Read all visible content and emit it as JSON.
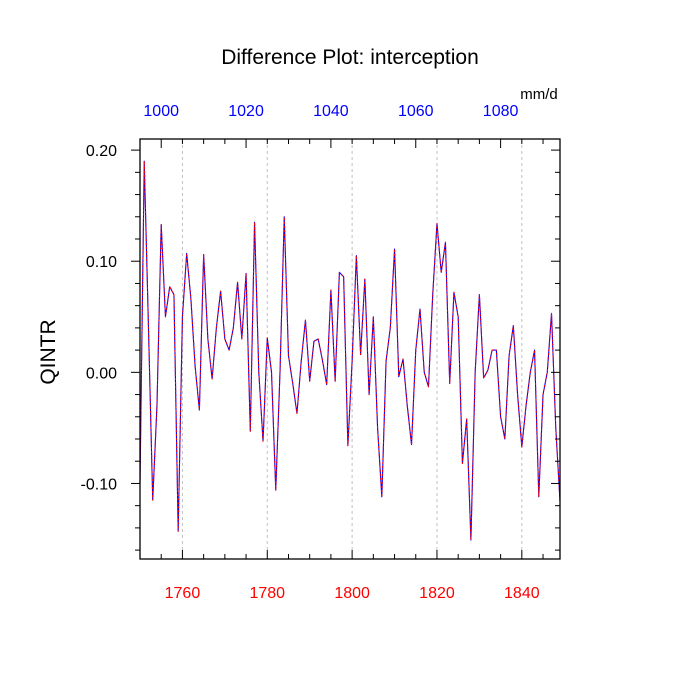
{
  "chart_data": {
    "type": "line",
    "title": "Difference Plot: interception",
    "ylabel": "QINTR",
    "units": "mm/d",
    "xlim": [
      1750,
      1849
    ],
    "ylim": [
      -0.168,
      0.21
    ],
    "top_xlim": [
      995,
      1094
    ],
    "grid": "vertical dashed lines at major x ticks",
    "x_ticks": [
      1760,
      1780,
      1800,
      1820,
      1840
    ],
    "x_tick_labels": [
      "1760",
      "1780",
      "1800",
      "1820",
      "1840"
    ],
    "top_ticks": [
      1000,
      1020,
      1040,
      1060,
      1080
    ],
    "top_tick_labels": [
      "1000",
      "1020",
      "1040",
      "1060",
      "1080"
    ],
    "y_ticks": [
      0.2,
      0.1,
      0.0,
      -0.1
    ],
    "y_tick_labels": [
      "0.20",
      "0.10",
      "0.00",
      "-0.10"
    ],
    "colors": {
      "bottom_axis": "#ff0000",
      "top_axis": "#0000ff",
      "series_a": "#0000ff",
      "series_b": "#ff0000"
    },
    "x": [
      1750,
      1751,
      1752,
      1753,
      1754,
      1755,
      1756,
      1757,
      1758,
      1759,
      1760,
      1761,
      1762,
      1763,
      1764,
      1765,
      1766,
      1767,
      1768,
      1769,
      1770,
      1771,
      1772,
      1773,
      1774,
      1775,
      1776,
      1777,
      1778,
      1779,
      1780,
      1781,
      1782,
      1783,
      1784,
      1785,
      1786,
      1787,
      1788,
      1789,
      1790,
      1791,
      1792,
      1793,
      1794,
      1795,
      1796,
      1797,
      1798,
      1799,
      1800,
      1801,
      1802,
      1803,
      1804,
      1805,
      1806,
      1807,
      1808,
      1809,
      1810,
      1811,
      1812,
      1813,
      1814,
      1815,
      1816,
      1817,
      1818,
      1819,
      1820,
      1821,
      1822,
      1823,
      1824,
      1825,
      1826,
      1827,
      1828,
      1829,
      1830,
      1831,
      1832,
      1833,
      1834,
      1835,
      1836,
      1837,
      1838,
      1839,
      1840,
      1841,
      1842,
      1843,
      1844,
      1845,
      1846,
      1847,
      1848,
      1849
    ],
    "series": [
      {
        "values": [
          -0.1,
          0.19,
          0.04,
          -0.115,
          -0.03,
          0.133,
          0.05,
          0.077,
          0.07,
          -0.143,
          0.05,
          0.107,
          0.066,
          0.005,
          -0.034,
          0.106,
          0.03,
          -0.006,
          0.04,
          0.073,
          0.03,
          0.02,
          0.04,
          0.081,
          0.03,
          0.089,
          -0.053,
          0.135,
          0.0,
          -0.062,
          0.031,
          0.0,
          -0.106,
          0.0,
          0.14,
          0.015,
          -0.01,
          -0.037,
          0.01,
          0.047,
          -0.008,
          0.028,
          0.03,
          0.011,
          -0.011,
          0.074,
          -0.008,
          0.09,
          0.086,
          -0.066,
          0.01,
          0.105,
          0.016,
          0.084,
          -0.02,
          0.05,
          -0.05,
          -0.112,
          0.01,
          0.04,
          0.111,
          -0.004,
          0.012,
          -0.03,
          -0.065,
          0.02,
          0.057,
          0.0,
          -0.013,
          0.07,
          0.134,
          0.09,
          0.117,
          -0.01,
          0.072,
          0.05,
          -0.082,
          -0.042,
          -0.151,
          0.0,
          0.07,
          -0.005,
          0.002,
          0.02,
          0.02,
          -0.04,
          -0.06,
          0.015,
          0.042,
          -0.02,
          -0.067,
          -0.03,
          0.0,
          0.02,
          -0.112,
          -0.02,
          0.0,
          0.053,
          -0.05,
          -0.116
        ]
      },
      {
        "values": [
          -0.1,
          0.19,
          0.04,
          -0.115,
          -0.03,
          0.133,
          0.05,
          0.077,
          0.07,
          -0.143,
          0.05,
          0.107,
          0.066,
          0.005,
          -0.034,
          0.106,
          0.03,
          -0.006,
          0.04,
          0.073,
          0.03,
          0.02,
          0.04,
          0.081,
          0.03,
          0.089,
          -0.053,
          0.135,
          0.0,
          -0.062,
          0.031,
          0.0,
          -0.106,
          0.0,
          0.14,
          0.015,
          -0.01,
          -0.037,
          0.01,
          0.047,
          -0.008,
          0.028,
          0.03,
          0.011,
          -0.011,
          0.074,
          -0.008,
          0.09,
          0.086,
          -0.066,
          0.01,
          0.105,
          0.016,
          0.084,
          -0.02,
          0.05,
          -0.05,
          -0.112,
          0.01,
          0.04,
          0.111,
          -0.004,
          0.012,
          -0.03,
          -0.065,
          0.02,
          0.057,
          0.0,
          -0.013,
          0.07,
          0.134,
          0.09,
          0.117,
          -0.01,
          0.072,
          0.05,
          -0.082,
          -0.042,
          -0.151,
          0.0,
          0.07,
          -0.005,
          0.002,
          0.02,
          0.02,
          -0.04,
          -0.06,
          0.015,
          0.042,
          -0.02,
          -0.067,
          -0.03,
          0.0,
          0.02,
          -0.112,
          -0.02,
          0.0,
          0.053,
          -0.05,
          -0.116
        ]
      }
    ]
  }
}
